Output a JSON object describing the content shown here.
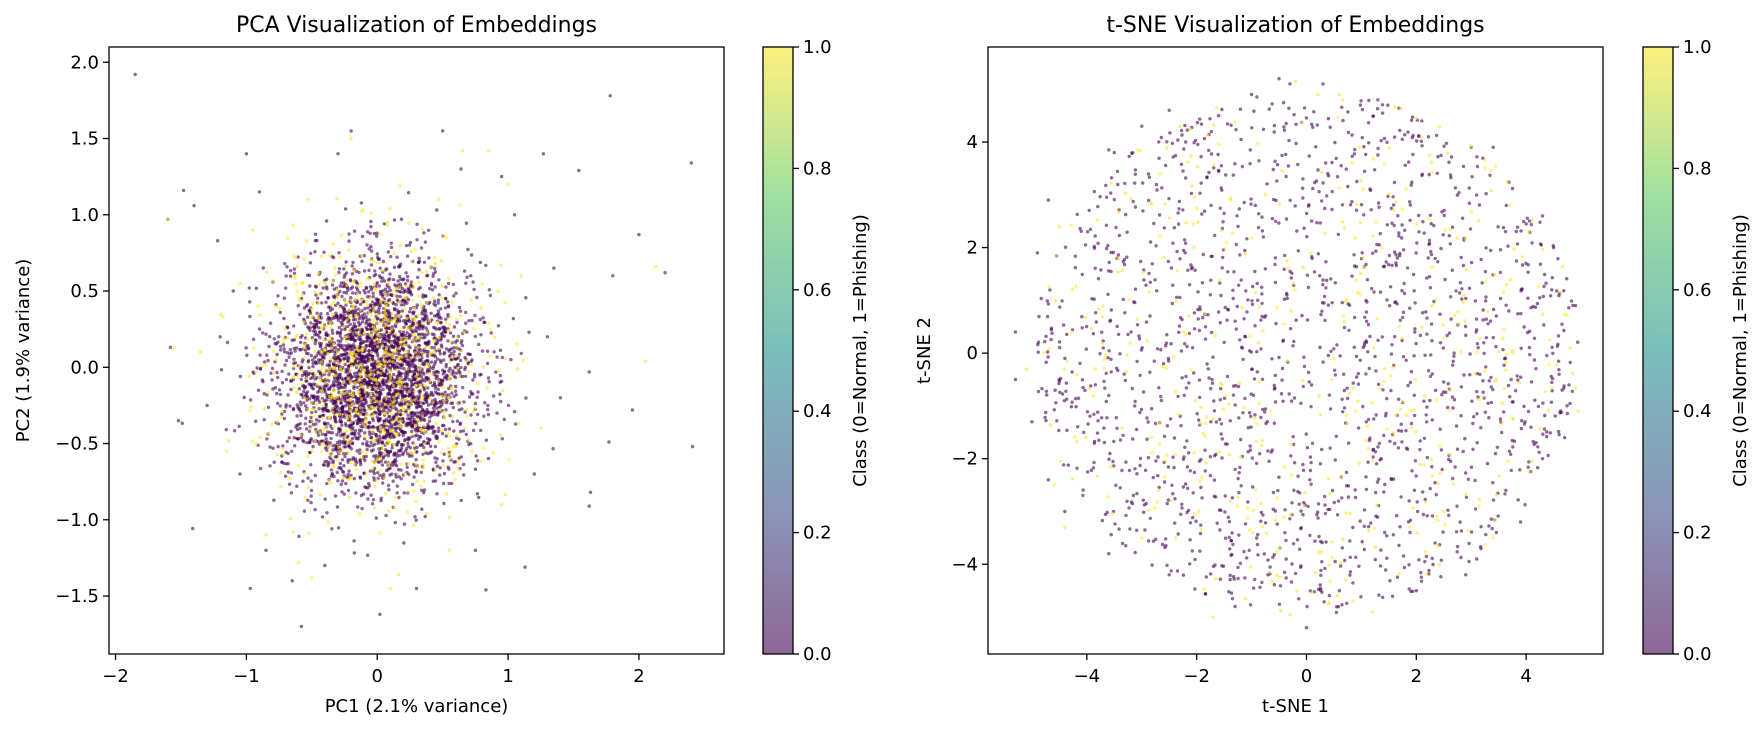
{
  "figure": {
    "background": "#ffffff"
  },
  "colormap": {
    "name": "viridis",
    "stops": [
      "#440154",
      "#3b528b",
      "#21918c",
      "#5ec962",
      "#fde725"
    ],
    "alpha": 0.6,
    "class_colors": {
      "0": "#440154",
      "1": "#fde725"
    }
  },
  "chart_data": [
    {
      "type": "scatter",
      "title": "PCA Visualization of Embeddings",
      "xlabel": "PC1 (2.1% variance)",
      "ylabel": "PC2 (1.9% variance)",
      "xlim": [
        -2.05,
        2.65
      ],
      "ylim": [
        -1.88,
        2.1
      ],
      "xticks": [
        -2,
        -1,
        0,
        1,
        2
      ],
      "xtick_labels": [
        "−2",
        "−1",
        "0",
        "1",
        "2"
      ],
      "yticks": [
        -1.5,
        -1.0,
        -0.5,
        0.0,
        0.5,
        1.0,
        1.5,
        2.0
      ],
      "ytick_labels": [
        "−1.5",
        "−1.0",
        "−0.5",
        "0.0",
        "0.5",
        "1.0",
        "1.5",
        "2.0"
      ],
      "colorbar": {
        "label": "Class (0=Normal, 1=Phishing)",
        "range": [
          0.0,
          1.0
        ],
        "ticks": [
          0.0,
          0.2,
          0.4,
          0.6,
          0.8,
          1.0
        ],
        "tick_labels": [
          "0.0",
          "0.2",
          "0.4",
          "0.6",
          "0.8",
          "1.0"
        ]
      },
      "legend": "none",
      "grid": false,
      "series": [
        {
          "class": 0,
          "color": "#440154",
          "points": [
            [
              -1.85,
              1.92
            ],
            [
              1.78,
              1.78
            ],
            [
              2.4,
              1.34
            ],
            [
              -1.0,
              1.4
            ],
            [
              1.27,
              1.4
            ],
            [
              -1.6,
              0.97
            ],
            [
              -1.48,
              1.16
            ],
            [
              1.54,
              1.29
            ],
            [
              2.0,
              0.87
            ],
            [
              2.2,
              0.62
            ],
            [
              1.8,
              0.6
            ],
            [
              -1.58,
              0.13
            ],
            [
              -1.52,
              -0.35
            ],
            [
              2.41,
              -0.52
            ],
            [
              1.77,
              -0.49
            ],
            [
              1.62,
              -0.03
            ],
            [
              1.95,
              -0.28
            ],
            [
              1.63,
              -0.82
            ],
            [
              1.62,
              -0.91
            ],
            [
              -0.97,
              -1.45
            ],
            [
              -0.58,
              -1.7
            ],
            [
              0.02,
              -1.62
            ],
            [
              0.83,
              -1.46
            ],
            [
              1.13,
              -1.31
            ],
            [
              -0.85,
              -1.2
            ],
            [
              -1.4,
              1.06
            ],
            [
              -1.22,
              0.83
            ],
            [
              -0.9,
              1.15
            ],
            [
              -0.3,
              1.4
            ],
            [
              0.95,
              1.25
            ],
            [
              0.64,
              1.3
            ],
            [
              -1.3,
              -0.25
            ],
            [
              -1.2,
              0.2
            ],
            [
              1.3,
              0.2
            ],
            [
              1.4,
              -0.2
            ],
            [
              1.2,
              -0.7
            ],
            [
              -0.4,
              -1.3
            ],
            [
              0.3,
              -1.45
            ],
            [
              -0.2,
              1.55
            ],
            [
              1.05,
              1.0
            ],
            [
              1.35,
              0.65
            ],
            [
              -1.1,
              0.5
            ],
            [
              -1.05,
              -0.7
            ],
            [
              0.75,
              -1.2
            ],
            [
              -0.65,
              -1.4
            ],
            [
              0.5,
              1.55
            ]
          ],
          "cloud": {
            "count": 3400,
            "center": [
              0.0,
              -0.05
            ],
            "std": [
              0.36,
              0.36
            ]
          }
        },
        {
          "class": 1,
          "color": "#fde725",
          "points": [
            [
              -1.6,
              0.97
            ],
            [
              -1.55,
              0.13
            ],
            [
              -1.35,
              0.1
            ],
            [
              0.65,
              1.42
            ],
            [
              0.85,
              1.42
            ],
            [
              -0.2,
              1.5
            ],
            [
              2.13,
              0.66
            ],
            [
              2.05,
              0.04
            ],
            [
              -0.6,
              -1.28
            ],
            [
              -0.5,
              -1.38
            ],
            [
              0.55,
              -1.2
            ],
            [
              -0.85,
              -1.1
            ],
            [
              0.1,
              -1.45
            ],
            [
              -1.15,
              -0.55
            ],
            [
              1.25,
              -0.4
            ],
            [
              1.1,
              0.6
            ],
            [
              -0.95,
              0.9
            ],
            [
              0.95,
              -0.9
            ],
            [
              1.0,
              1.2
            ]
          ],
          "cloud": {
            "count": 800,
            "center": [
              0.0,
              0.0
            ],
            "std": [
              0.42,
              0.4
            ]
          }
        }
      ]
    },
    {
      "type": "scatter",
      "title": "t-SNE Visualization of Embeddings",
      "xlabel": "t-SNE 1",
      "ylabel": "t-SNE 2",
      "xlim": [
        -5.8,
        5.4
      ],
      "ylim": [
        -5.7,
        5.8
      ],
      "xticks": [
        -4,
        -2,
        0,
        2,
        4
      ],
      "xtick_labels": [
        "−4",
        "−2",
        "0",
        "2",
        "4"
      ],
      "yticks": [
        -4,
        -2,
        0,
        2,
        4
      ],
      "ytick_labels": [
        "−4",
        "−2",
        "0",
        "2",
        "4"
      ],
      "colorbar": {
        "label": "Class (0=Normal, 1=Phishing)",
        "range": [
          0.0,
          1.0
        ],
        "ticks": [
          0.0,
          0.2,
          0.4,
          0.6,
          0.8,
          1.0
        ],
        "tick_labels": [
          "0.0",
          "0.2",
          "0.4",
          "0.6",
          "0.8",
          "1.0"
        ]
      },
      "legend": "none",
      "grid": false,
      "series": [
        {
          "class": 0,
          "color": "#440154",
          "points": [
            [
              -0.5,
              5.2
            ],
            [
              -0.3,
              5.1
            ],
            [
              0.3,
              5.1
            ],
            [
              1.3,
              4.8
            ],
            [
              -2.5,
              4.6
            ],
            [
              -2.2,
              4.0
            ],
            [
              -3.6,
              3.85
            ],
            [
              -3.5,
              3.8
            ],
            [
              -4.7,
              2.9
            ],
            [
              -4.9,
              1.9
            ],
            [
              -5.3,
              0.4
            ],
            [
              -5.3,
              -0.5
            ],
            [
              -5.0,
              -1.3
            ],
            [
              -4.7,
              -2.4
            ],
            [
              -4.4,
              -3.0
            ],
            [
              -3.6,
              -3.8
            ],
            [
              -2.5,
              -4.2
            ],
            [
              -1.3,
              -4.8
            ],
            [
              0.0,
              -5.2
            ],
            [
              0.6,
              -4.5
            ],
            [
              2.0,
              -4.5
            ],
            [
              2.9,
              -4.2
            ],
            [
              3.1,
              -3.9
            ],
            [
              3.9,
              -3.2
            ],
            [
              4.3,
              -2.0
            ],
            [
              4.7,
              -1.6
            ],
            [
              4.6,
              -0.4
            ],
            [
              4.9,
              0.9
            ],
            [
              4.5,
              2.0
            ],
            [
              4.3,
              2.6
            ],
            [
              3.4,
              3.9
            ],
            [
              3.0,
              3.9
            ],
            [
              2.1,
              4.4
            ],
            [
              -1.0,
              4.9
            ],
            [
              -1.6,
              4.5
            ],
            [
              -3.0,
              4.3
            ]
          ],
          "cloud": {
            "count": 1650,
            "center": [
              0.0,
              0.0
            ],
            "radius": 4.95
          }
        },
        {
          "class": 1,
          "color": "#fde725",
          "points": [
            [
              -0.2,
              5.15
            ],
            [
              2.0,
              4.45
            ],
            [
              0.6,
              4.9
            ],
            [
              -4.5,
              2.4
            ],
            [
              -4.6,
              -2.5
            ],
            [
              -4.4,
              -3.3
            ],
            [
              -1.7,
              -5.0
            ],
            [
              -0.3,
              -4.95
            ],
            [
              1.2,
              -4.9
            ],
            [
              3.4,
              -3.5
            ],
            [
              3.7,
              2.8
            ],
            [
              4.8,
              0.1
            ],
            [
              4.95,
              -1.1
            ],
            [
              -5.1,
              -0.3
            ],
            [
              -3.0,
              -3.5
            ],
            [
              2.5,
              -3.0
            ]
          ],
          "cloud": {
            "count": 420,
            "center": [
              0.0,
              0.0
            ],
            "radius": 4.95
          }
        }
      ]
    }
  ]
}
